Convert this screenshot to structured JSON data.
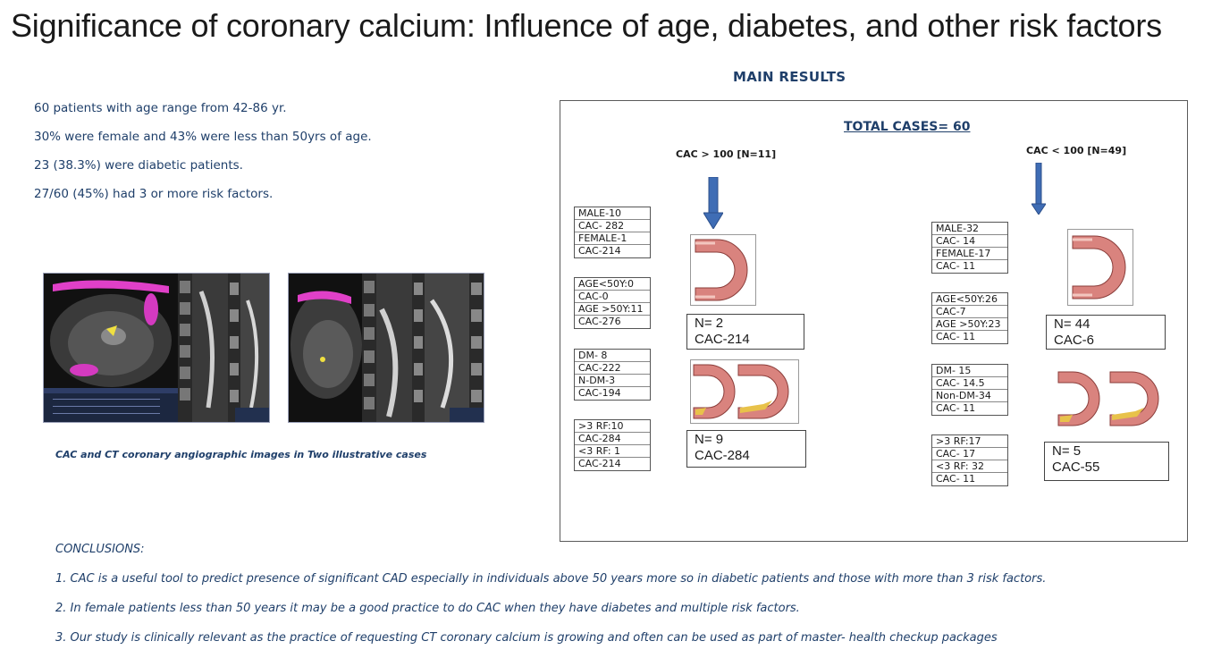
{
  "title": "Significance of coronary calcium: Influence of age, diabetes, and other risk factors",
  "main_results_heading": "MAIN RESULTS",
  "facts": [
    "60 patients with age range from 42-86 yr.",
    "30% were female and 43% were less than 50yrs of age.",
    " 23 (38.3%) were diabetic patients.",
    " 27/60 (45%) had 3 or more risk factors."
  ],
  "images": {
    "caption": "CAC and CT coronary angiographic images in Two illustrative cases"
  },
  "results": {
    "total": "TOTAL CASES= 60",
    "high": {
      "label": "CAC > 100 [N=11]",
      "stats": [
        [
          "MALE-10",
          "CAC- 282",
          "FEMALE-1",
          "CAC-214"
        ],
        [
          "AGE<50Y:0",
          "CAC-0",
          "AGE >50Y:11",
          "CAC-276"
        ],
        [
          "DM- 8",
          "CAC-222",
          "N-DM-3",
          "CAC-194"
        ],
        [
          ">3 RF:10",
          "CAC-284",
          "<3 RF: 1",
          "CAC-214"
        ]
      ],
      "outcomes": [
        {
          "n": "N= 2",
          "cac": "CAC-214"
        },
        {
          "n": "N= 9",
          "cac": "CAC-284"
        }
      ]
    },
    "low": {
      "label": "CAC < 100 [N=49]",
      "stats": [
        [
          "MALE-32",
          "CAC- 14",
          "FEMALE-17",
          "CAC- 11"
        ],
        [
          "AGE<50Y:26",
          "CAC-7",
          "AGE >50Y:23",
          "CAC- 11"
        ],
        [
          "DM- 15",
          "CAC- 14.5",
          "Non-DM-34",
          "CAC- 11"
        ],
        [
          ">3 RF:17",
          "CAC- 17",
          "<3 RF: 32",
          "CAC- 11"
        ]
      ],
      "outcomes": [
        {
          "n": "N= 44",
          "cac": "CAC-6"
        },
        {
          "n": "N= 5",
          "cac": "CAC-55"
        }
      ]
    }
  },
  "conclusions": {
    "heading": "CONCLUSIONS:",
    "items": [
      "1. CAC is a useful tool to predict presence of significant CAD especially in individuals above 50 years more so in diabetic patients and those with more than 3 risk factors.",
      "2.  In female patients less than 50 years it may be a good practice to do CAC when they have diabetes and multiple risk factors.",
      "3. Our study is clinically relevant as the practice of requesting CT coronary calcium is growing and often can be used as part of master- health checkup packages"
    ]
  },
  "colors": {
    "accent_text": "#1f3f6a",
    "arrow": "#3f6db5",
    "vessel_wall": "#c96a66"
  }
}
